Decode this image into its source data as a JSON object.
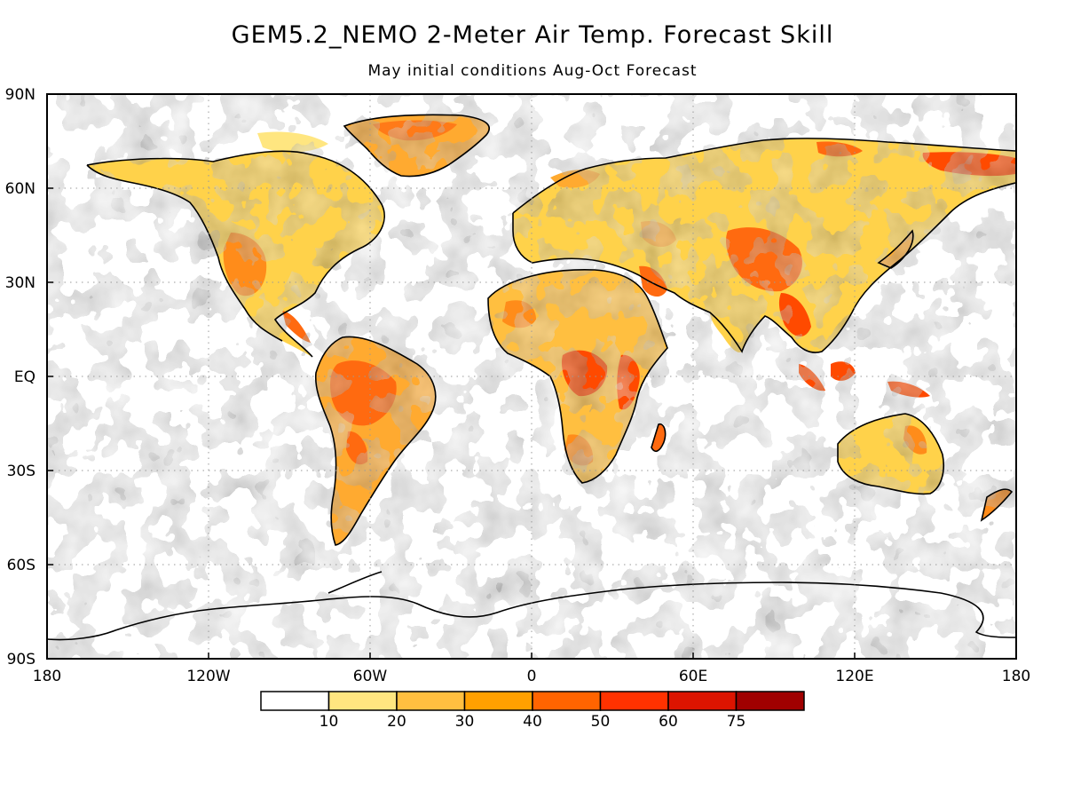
{
  "title": "GEM5.2_NEMO 2-Meter Air Temp. Forecast Skill",
  "subtitle": "May initial conditions  Aug-Oct Forecast",
  "axes": {
    "lat_labels": [
      "90N",
      "60N",
      "30N",
      "EQ",
      "30S",
      "60S",
      "90S"
    ],
    "lon_labels": [
      "180",
      "120W",
      "60W",
      "0",
      "60E",
      "120E",
      "180"
    ]
  },
  "colorbar": {
    "ticks": [
      "10",
      "20",
      "30",
      "40",
      "50",
      "60",
      "75"
    ],
    "colors": [
      "#ffffff",
      "#ffe680",
      "#ffbf40",
      "#ffa000",
      "#ff6400",
      "#ff3200",
      "#dc1400",
      "#a00000"
    ]
  },
  "colors": {
    "coastline": "#000000",
    "gridline": "#999999"
  }
}
